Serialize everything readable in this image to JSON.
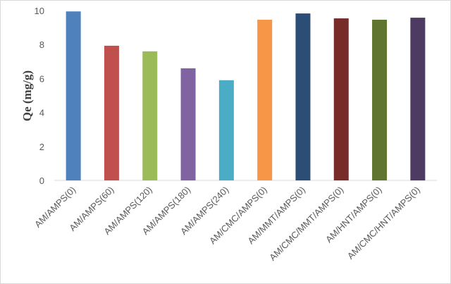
{
  "chart_data": {
    "type": "bar",
    "y_label": "Qe (mg/g)",
    "categories": [
      "AM/AMPS(0)",
      "AM/AMPS(60)",
      "AM/AMPS(120)",
      "AM/AMPS(180)",
      "AM/AMPS(240)",
      "AM/CMC/AMPS(0)",
      "AM/MMT/AMPS(0)",
      "AM/CMC/MMT/AMPS(0)",
      "AM/HNT/AMPS(0)",
      "AM/CMC/HNT/AMPS(0)"
    ],
    "values": [
      9.95,
      7.93,
      7.6,
      6.6,
      5.9,
      9.46,
      9.83,
      9.54,
      9.46,
      9.58
    ],
    "colors": [
      "#4f81bd",
      "#c0504d",
      "#9bbb59",
      "#8064a2",
      "#4bacc6",
      "#f79646",
      "#2c4d75",
      "#772c2a",
      "#5f7530",
      "#4d3b62"
    ],
    "ylim": [
      0,
      10
    ],
    "yticks": [
      0,
      2,
      4,
      6,
      8,
      10
    ],
    "grid": false
  }
}
